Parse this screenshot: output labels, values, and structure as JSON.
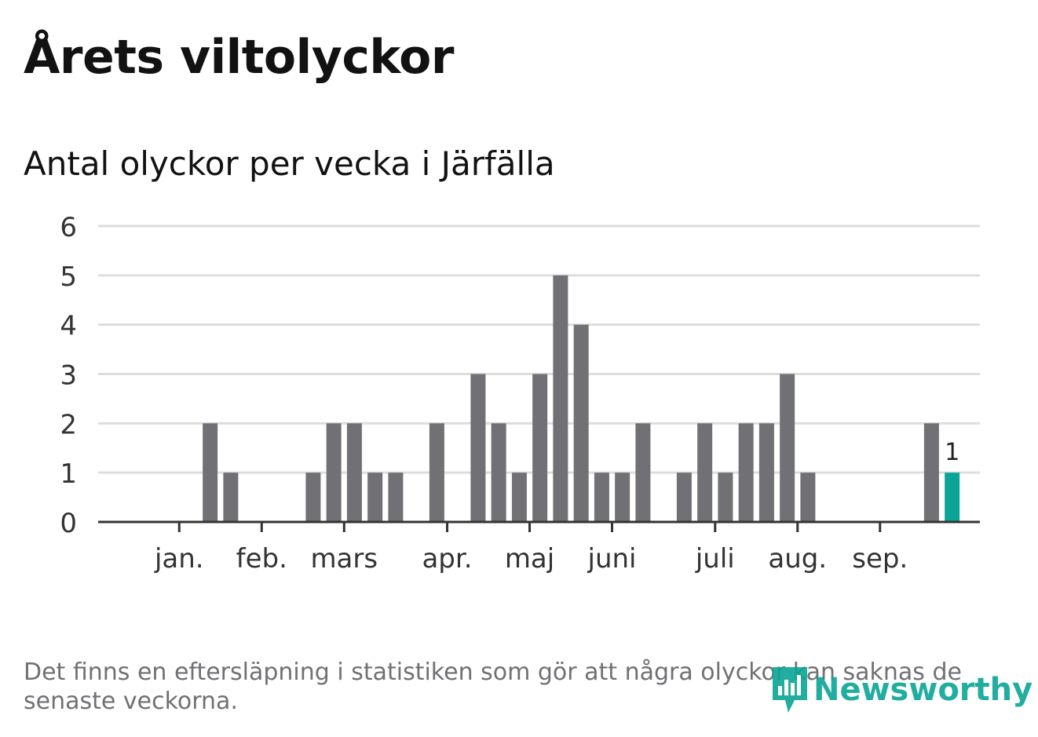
{
  "header": {
    "title": "Årets viltolyckor",
    "subtitle": "Antal olyckor per vecka i Järfälla"
  },
  "footer": {
    "note": "Det finns en eftersläpning i statistiken som gör att några olyckor kan saknas de senaste veckorna.",
    "brand": "Newsworthy"
  },
  "colors": {
    "bar": "#707075",
    "highlight": "#0aa596",
    "grid": "#dddddd",
    "axis": "#333333"
  },
  "chart_data": {
    "type": "bar",
    "title": "Antal olyckor per vecka i Järfälla",
    "xlabel": "",
    "ylabel": "",
    "ylim": [
      0,
      6
    ],
    "yticks": [
      0,
      1,
      2,
      3,
      4,
      5,
      6
    ],
    "weeks": [
      1,
      2,
      3,
      4,
      5,
      6,
      7,
      8,
      9,
      10,
      11,
      12,
      13,
      14,
      15,
      16,
      17,
      18,
      19,
      20,
      21,
      22,
      23,
      24,
      25,
      26,
      27,
      28,
      29,
      30,
      31,
      32,
      33,
      34,
      35,
      36,
      37,
      38,
      39,
      40,
      41
    ],
    "values": [
      0,
      0,
      0,
      0,
      2,
      1,
      0,
      0,
      0,
      1,
      2,
      2,
      1,
      1,
      0,
      2,
      0,
      3,
      2,
      1,
      3,
      5,
      4,
      1,
      1,
      2,
      0,
      1,
      2,
      1,
      2,
      2,
      3,
      1,
      0,
      0,
      0,
      0,
      0,
      2,
      1
    ],
    "highlight_index": 40,
    "highlight_label": "1",
    "month_ticks": [
      {
        "label": "jan.",
        "week": 3.5
      },
      {
        "label": "feb.",
        "week": 7.5
      },
      {
        "label": "mars",
        "week": 11.5
      },
      {
        "label": "apr.",
        "week": 16.5
      },
      {
        "label": "maj",
        "week": 20.5
      },
      {
        "label": "juni",
        "week": 24.5
      },
      {
        "label": "juli",
        "week": 29.5
      },
      {
        "label": "aug.",
        "week": 33.5
      },
      {
        "label": "sep.",
        "week": 37.5
      }
    ]
  }
}
